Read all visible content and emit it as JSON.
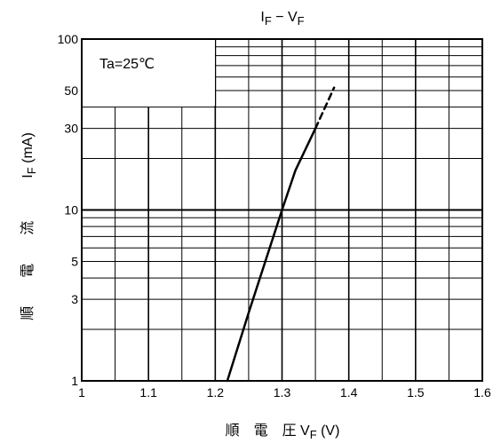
{
  "chart_data": {
    "type": "line",
    "title": "I F − V F",
    "xlabel": "順 電 圧 V F (V)",
    "ylabel": "順 電 流 I F (mA)",
    "xlim": [
      1.0,
      1.6
    ],
    "ylim": [
      1,
      100
    ],
    "yscale": "log",
    "grid": true,
    "annotation": "Ta=25℃",
    "x_tick_labels": [
      "1",
      "1.1",
      "1.2",
      "1.3",
      "1.4",
      "1.5",
      "1.6"
    ],
    "y_tick_labels": [
      "1",
      "3",
      "5",
      "10",
      "30",
      "50",
      "100"
    ],
    "series": [
      {
        "style": "solid",
        "points": [
          [
            1.218,
            1.0
          ],
          [
            1.25,
            2.5
          ],
          [
            1.3,
            10.0
          ],
          [
            1.32,
            17.0
          ],
          [
            1.35,
            30.0
          ]
        ]
      },
      {
        "style": "dashed",
        "points": [
          [
            1.35,
            30.0
          ],
          [
            1.378,
            52.0
          ]
        ]
      }
    ]
  },
  "labels": {
    "title_main": "I F − V F",
    "annotation": "Ta=25℃",
    "xlabel_text": "順　電　圧 V",
    "xlabel_sub": "F",
    "xlabel_unit": "(V)",
    "ylabel_kanji": [
      "順",
      "電",
      "流"
    ],
    "ylabel_main": "I",
    "ylabel_sub": "F",
    "ylabel_unit": "(mA)"
  }
}
